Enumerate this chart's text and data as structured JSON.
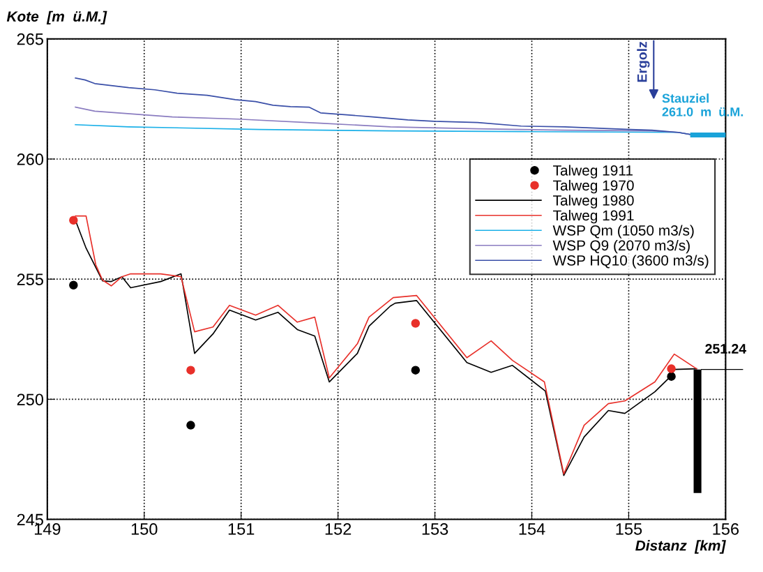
{
  "chart_data": {
    "type": "line",
    "xlabel": "Distanz  [km]",
    "ylabel": "Kote  [m  ü.M.]",
    "xlim": [
      149,
      156
    ],
    "xticks": [
      149,
      150,
      151,
      152,
      153,
      154,
      155,
      156
    ],
    "ylim": [
      245,
      265
    ],
    "yticks": [
      245,
      250,
      255,
      260,
      265
    ],
    "grid": true,
    "legend": "right",
    "line_style": "solid",
    "series": [
      {
        "name": "Talweg 1911",
        "type": "scatter",
        "marker": "circle",
        "color": "#000000",
        "x": [
          149.27,
          150.48,
          152.8,
          155.44
        ],
        "values": [
          254.75,
          248.92,
          251.21,
          250.95
        ]
      },
      {
        "name": "Talweg 1970",
        "type": "scatter",
        "marker": "circle",
        "color": "#e8302a",
        "x": [
          149.27,
          150.48,
          152.8,
          155.44
        ],
        "values": [
          257.45,
          251.21,
          253.16,
          251.27
        ]
      },
      {
        "name": "Talweg 1980",
        "color": "#000000",
        "x": [
          149.29,
          149.4,
          149.57,
          149.66,
          149.77,
          149.86,
          150.17,
          150.38,
          150.52,
          150.71,
          150.88,
          151.15,
          151.38,
          151.58,
          151.76,
          151.91,
          152.2,
          152.32,
          152.54,
          152.59,
          152.81,
          153.33,
          153.58,
          153.8,
          154.14,
          154.33,
          154.54,
          154.79,
          154.96,
          155.27,
          155.44,
          155.47,
          155.7
        ],
        "values": [
          257.45,
          256.29,
          254.93,
          254.9,
          255.1,
          254.64,
          254.9,
          255.22,
          251.91,
          252.72,
          253.71,
          253.3,
          253.62,
          252.9,
          252.63,
          250.72,
          251.91,
          253.04,
          253.88,
          254.0,
          254.11,
          251.53,
          251.12,
          251.41,
          250.34,
          246.83,
          248.43,
          249.53,
          249.41,
          250.31,
          250.98,
          251.24,
          251.27
        ]
      },
      {
        "name": "Talweg 1991",
        "color": "#e8302a",
        "x": [
          149.29,
          149.4,
          149.5,
          149.57,
          149.66,
          149.77,
          149.86,
          150.17,
          150.38,
          150.52,
          150.71,
          150.88,
          151.15,
          151.38,
          151.58,
          151.76,
          151.91,
          152.2,
          152.32,
          152.57,
          152.81,
          153.33,
          153.58,
          153.8,
          154.13,
          154.33,
          154.54,
          154.79,
          154.96,
          155.27,
          155.47,
          155.7
        ],
        "values": [
          257.63,
          257.63,
          255.6,
          254.96,
          254.72,
          255.1,
          255.22,
          255.22,
          255.1,
          252.81,
          253.01,
          253.91,
          253.5,
          253.91,
          253.21,
          253.42,
          250.89,
          252.31,
          253.42,
          254.23,
          254.32,
          251.73,
          252.43,
          251.62,
          250.72,
          246.89,
          248.92,
          249.82,
          249.93,
          250.72,
          251.88,
          251.27
        ]
      },
      {
        "name": "WSP Qm (1050 m3/s)",
        "type": "line",
        "color": "#1ab0e8",
        "x": [
          149.29,
          149.84,
          151.19,
          152.54,
          153.89,
          155.51,
          155.64
        ],
        "values": [
          261.43,
          261.34,
          261.23,
          261.17,
          261.14,
          261.11,
          261.02
        ]
      },
      {
        "name": "WSP Q9 (2070 m3/s)",
        "type": "line",
        "color": "#8a7cc0",
        "x": [
          149.29,
          149.49,
          150.29,
          150.97,
          151.82,
          152.54,
          153.44,
          154.34,
          155.24,
          155.51,
          155.64
        ],
        "values": [
          262.16,
          261.99,
          261.75,
          261.66,
          261.49,
          261.34,
          261.26,
          261.2,
          261.17,
          261.11,
          261.02
        ]
      },
      {
        "name": "WSP HQ10 (3600 m3/s)",
        "type": "line",
        "color": "#3a4fa8",
        "x": [
          149.29,
          149.39,
          149.49,
          149.84,
          150.11,
          150.34,
          150.65,
          150.94,
          151.15,
          151.33,
          151.51,
          151.7,
          151.82,
          152.09,
          152.36,
          152.72,
          152.99,
          153.44,
          153.89,
          154.34,
          154.7,
          155.02,
          155.24,
          155.51,
          155.64
        ],
        "values": [
          263.37,
          263.29,
          263.14,
          262.97,
          262.88,
          262.74,
          262.65,
          262.47,
          262.39,
          262.24,
          262.18,
          262.16,
          261.92,
          261.84,
          261.75,
          261.63,
          261.57,
          261.52,
          261.37,
          261.34,
          261.28,
          261.23,
          261.2,
          261.11,
          261.02
        ]
      },
      {
        "type": "line",
        "color": "#1aa3d9",
        "x": [
          155.66,
          156.0
        ],
        "values": [
          261.0,
          261.0
        ]
      },
      {
        "type": "bar",
        "color": "#000000",
        "x": [
          155.71
        ],
        "base": [
          246.1
        ],
        "values": [
          5.14
        ]
      }
    ],
    "ref_lines": [
      {
        "axis": "y",
        "value": 251.24,
        "label": "251.24",
        "color": "#000000"
      }
    ],
    "annotations": [
      "Ergolz",
      "Stauziel\n261.0  m  ü.M."
    ]
  }
}
